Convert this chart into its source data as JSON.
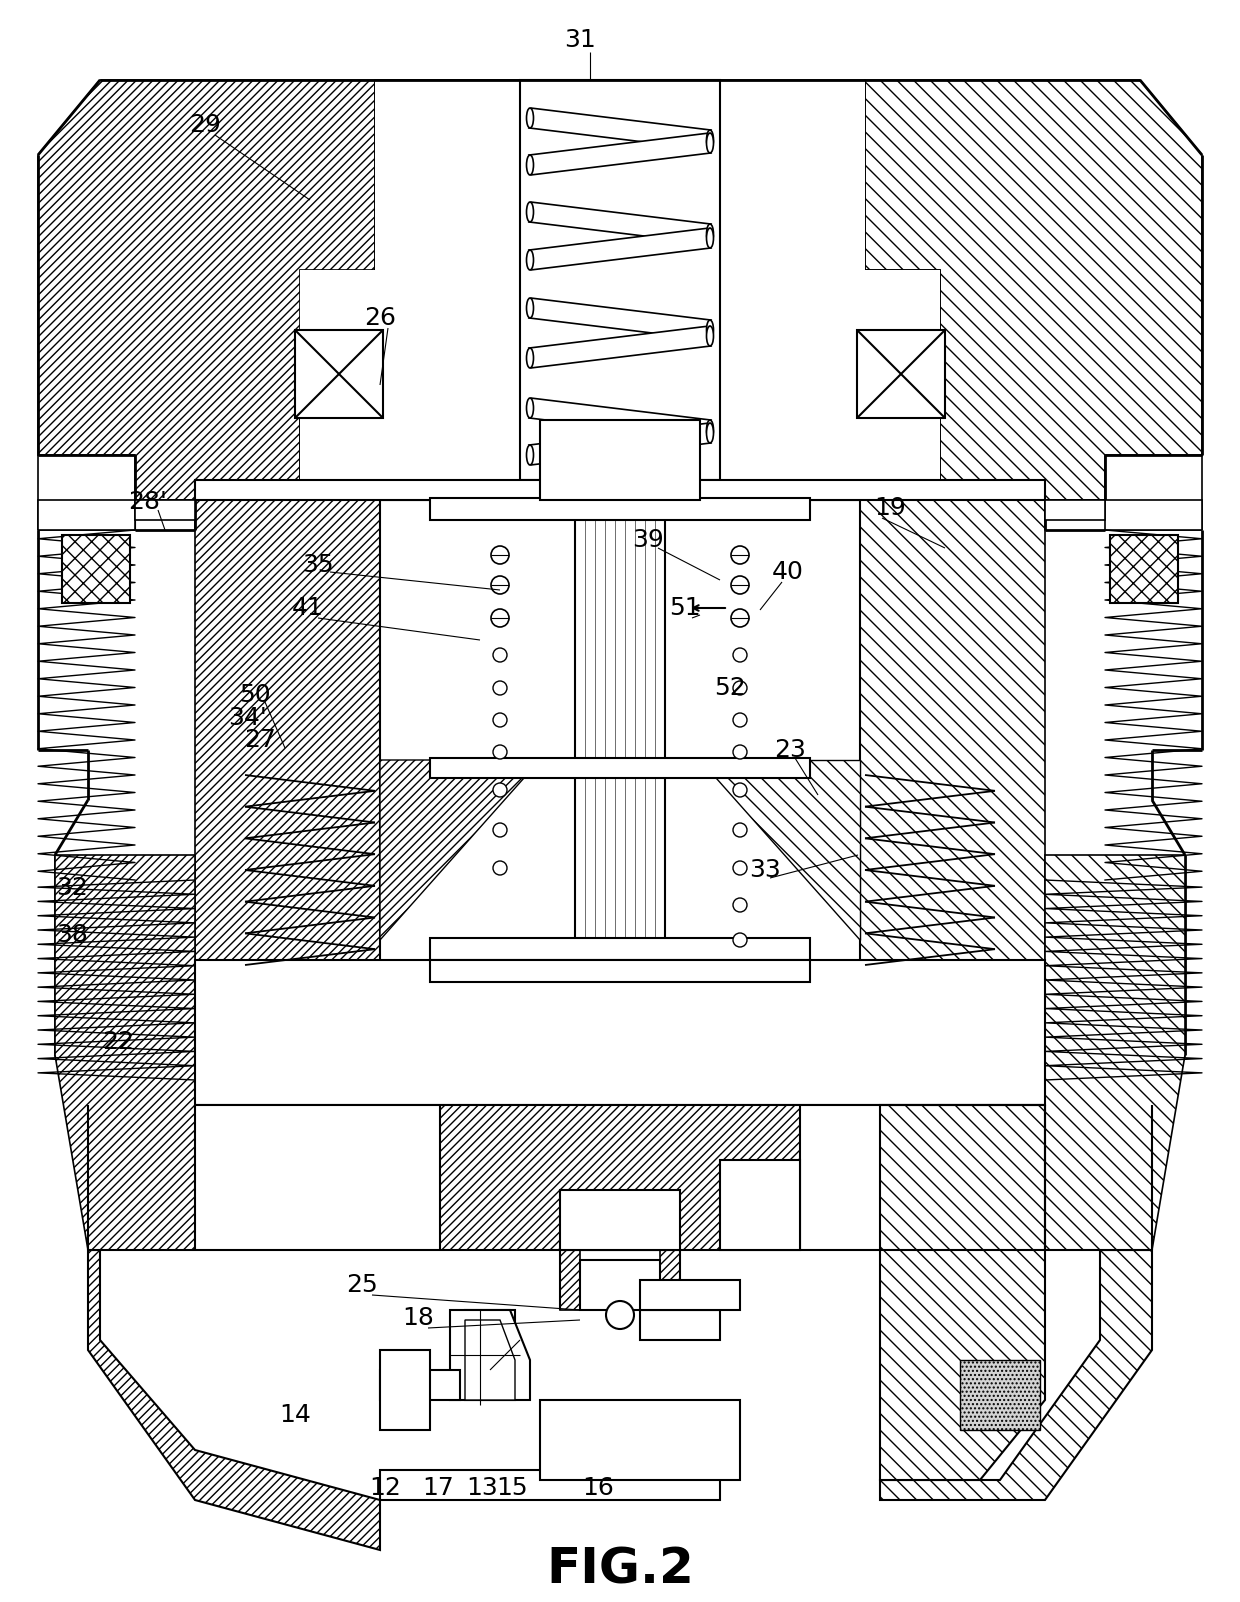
{
  "title": "FIG.2",
  "title_fontsize": 36,
  "bg_color": "#ffffff",
  "fig_width": 12.4,
  "fig_height": 16.02,
  "labels": [
    [
      "29",
      205,
      125
    ],
    [
      "31",
      580,
      40
    ],
    [
      "26",
      380,
      318
    ],
    [
      "28'",
      148,
      502
    ],
    [
      "19",
      890,
      508
    ],
    [
      "35",
      318,
      565
    ],
    [
      "41",
      308,
      608
    ],
    [
      "39",
      648,
      540
    ],
    [
      "40",
      788,
      572
    ],
    [
      "51",
      685,
      608
    ],
    [
      "50",
      255,
      695
    ],
    [
      "34'",
      248,
      718
    ],
    [
      "27",
      260,
      740
    ],
    [
      "52",
      730,
      688
    ],
    [
      "23",
      790,
      750
    ],
    [
      "32",
      72,
      888
    ],
    [
      "38",
      72,
      935
    ],
    [
      "33",
      765,
      870
    ],
    [
      "22",
      118,
      1042
    ],
    [
      "25",
      362,
      1285
    ],
    [
      "18",
      418,
      1318
    ],
    [
      "14",
      295,
      1415
    ],
    [
      "12",
      385,
      1488
    ],
    [
      "17",
      438,
      1488
    ],
    [
      "13",
      482,
      1488
    ],
    [
      "15",
      512,
      1488
    ],
    [
      "16",
      598,
      1488
    ]
  ]
}
